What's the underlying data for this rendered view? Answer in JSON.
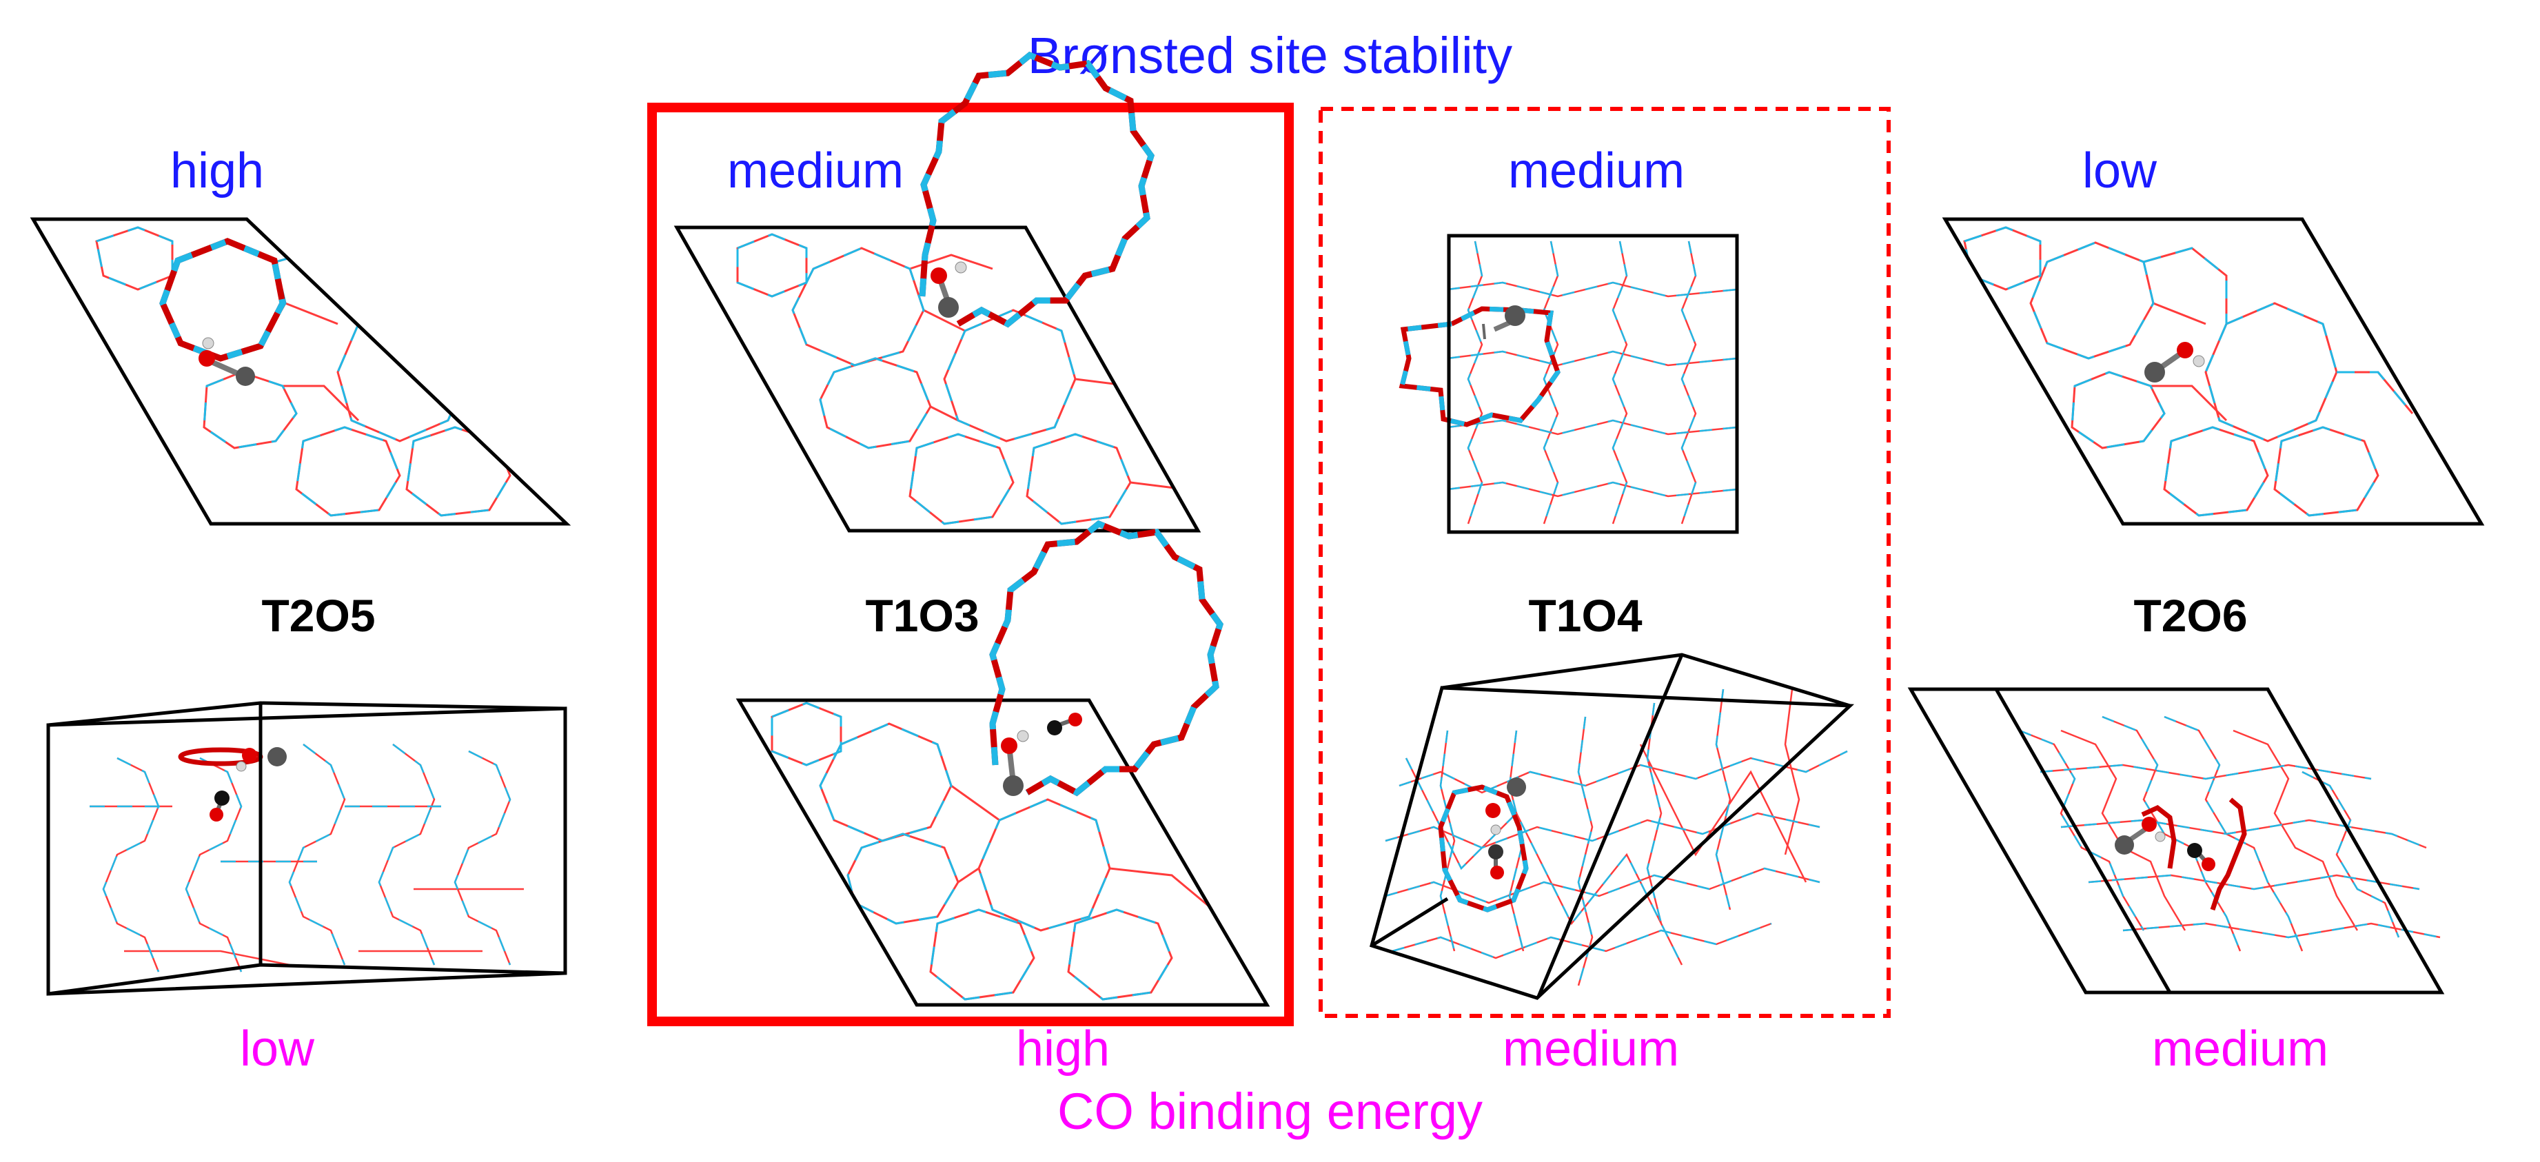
{
  "figure": {
    "top_title": "Brønsted site stability",
    "bottom_title": "CO binding energy",
    "colors": {
      "stability_text": "#1a1aff",
      "binding_text": "#ff00ff",
      "highlight_box": "#ff0000",
      "framework_o": "#ff3b3b",
      "framework_si": "#21b8e6",
      "cell_edge": "#000000",
      "atom_o": "#e00000",
      "atom_c": "#555555",
      "atom_h": "#d8d8d8"
    },
    "panels": [
      {
        "id": "T2O5",
        "name": "T2O5",
        "stability": "high",
        "binding": "low",
        "box": "none"
      },
      {
        "id": "T1O3",
        "name": "T1O3",
        "stability": "medium",
        "binding": "high",
        "box": "solid"
      },
      {
        "id": "T1O4",
        "name": "T1O4",
        "stability": "medium",
        "binding": "medium",
        "box": "dashed"
      },
      {
        "id": "T2O6",
        "name": "T2O6",
        "stability": "low",
        "binding": "medium",
        "box": "none"
      }
    ]
  }
}
